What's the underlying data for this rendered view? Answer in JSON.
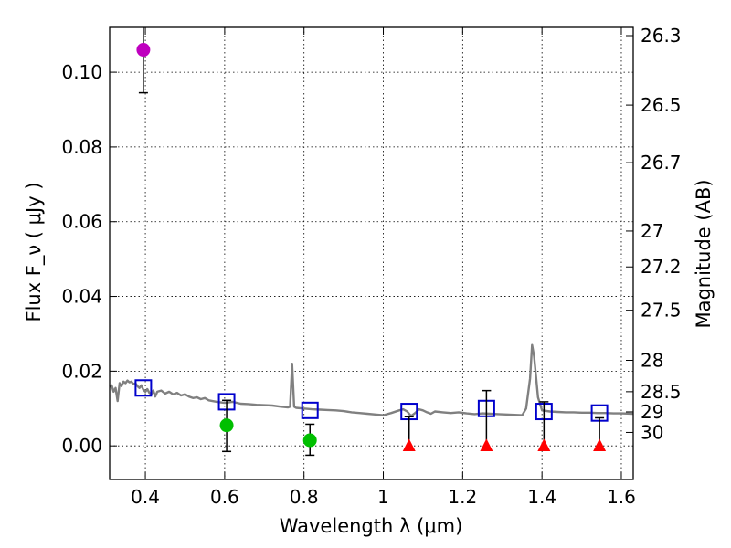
{
  "chart_data": {
    "type": "scatter",
    "xlabel": "Wavelength  λ (μm)",
    "ylabel": "Flux  F_ν  ( μJy )",
    "ylabel_right": "Magnitude (AB)",
    "xlim": [
      0.31,
      1.63
    ],
    "ylim": [
      -0.009,
      0.112
    ],
    "grid": true,
    "xticks": [
      0.4,
      0.6,
      0.8,
      1.0,
      1.2,
      1.4,
      1.6
    ],
    "xtick_labels": [
      "0.4",
      "0.6",
      "0.8",
      "1",
      "1.2",
      "1.4",
      "1.6"
    ],
    "yticks": [
      0.0,
      0.02,
      0.04,
      0.06,
      0.08,
      0.1
    ],
    "ytick_labels": [
      "0.00",
      "0.02",
      "0.04",
      "0.06",
      "0.08",
      "0.10"
    ],
    "right_ticks": [
      {
        "label": "26.3",
        "flux": 0.1098
      },
      {
        "label": "26.5",
        "flux": 0.0912
      },
      {
        "label": "26.7",
        "flux": 0.0758
      },
      {
        "label": "27",
        "flux": 0.0575
      },
      {
        "label": "27.2",
        "flux": 0.0479
      },
      {
        "label": "27.5",
        "flux": 0.0363
      },
      {
        "label": "28",
        "flux": 0.0229
      },
      {
        "label": "28.5",
        "flux": 0.0145
      },
      {
        "label": "29",
        "flux": 0.0091
      },
      {
        "label": "30",
        "flux": 0.0036
      }
    ],
    "series": [
      {
        "name": "model-spectrum",
        "kind": "line",
        "color": "#808080",
        "points": [
          [
            0.31,
            0.0158
          ],
          [
            0.315,
            0.0162
          ],
          [
            0.32,
            0.0145
          ],
          [
            0.325,
            0.0155
          ],
          [
            0.33,
            0.012
          ],
          [
            0.335,
            0.0168
          ],
          [
            0.34,
            0.016
          ],
          [
            0.345,
            0.0172
          ],
          [
            0.35,
            0.0168
          ],
          [
            0.355,
            0.0175
          ],
          [
            0.36,
            0.017
          ],
          [
            0.365,
            0.0172
          ],
          [
            0.37,
            0.0165
          ],
          [
            0.375,
            0.0168
          ],
          [
            0.38,
            0.016
          ],
          [
            0.385,
            0.0155
          ],
          [
            0.39,
            0.0162
          ],
          [
            0.395,
            0.015
          ],
          [
            0.4,
            0.0145
          ],
          [
            0.405,
            0.0152
          ],
          [
            0.41,
            0.0142
          ],
          [
            0.415,
            0.0138
          ],
          [
            0.42,
            0.0148
          ],
          [
            0.425,
            0.0132
          ],
          [
            0.43,
            0.0145
          ],
          [
            0.44,
            0.0148
          ],
          [
            0.45,
            0.014
          ],
          [
            0.46,
            0.0145
          ],
          [
            0.47,
            0.0138
          ],
          [
            0.48,
            0.0142
          ],
          [
            0.49,
            0.0135
          ],
          [
            0.5,
            0.0138
          ],
          [
            0.51,
            0.0132
          ],
          [
            0.52,
            0.0128
          ],
          [
            0.53,
            0.013
          ],
          [
            0.54,
            0.0125
          ],
          [
            0.55,
            0.0128
          ],
          [
            0.56,
            0.0122
          ],
          [
            0.58,
            0.0118
          ],
          [
            0.6,
            0.0115
          ],
          [
            0.62,
            0.0118
          ],
          [
            0.64,
            0.0113
          ],
          [
            0.66,
            0.0112
          ],
          [
            0.68,
            0.011
          ],
          [
            0.7,
            0.0109
          ],
          [
            0.72,
            0.0108
          ],
          [
            0.74,
            0.0105
          ],
          [
            0.76,
            0.0103
          ],
          [
            0.765,
            0.0105
          ],
          [
            0.77,
            0.022
          ],
          [
            0.775,
            0.0105
          ],
          [
            0.78,
            0.0102
          ],
          [
            0.8,
            0.01
          ],
          [
            0.82,
            0.0098
          ],
          [
            0.84,
            0.0097
          ],
          [
            0.86,
            0.0096
          ],
          [
            0.88,
            0.0095
          ],
          [
            0.9,
            0.0093
          ],
          [
            0.92,
            0.009
          ],
          [
            0.94,
            0.0088
          ],
          [
            0.96,
            0.0086
          ],
          [
            0.98,
            0.0084
          ],
          [
            1.0,
            0.0082
          ],
          [
            1.02,
            0.0088
          ],
          [
            1.04,
            0.0095
          ],
          [
            1.05,
            0.0098
          ],
          [
            1.06,
            0.0092
          ],
          [
            1.07,
            0.008
          ],
          [
            1.08,
            0.0088
          ],
          [
            1.09,
            0.0098
          ],
          [
            1.1,
            0.0095
          ],
          [
            1.11,
            0.009
          ],
          [
            1.12,
            0.0086
          ],
          [
            1.13,
            0.0092
          ],
          [
            1.15,
            0.009
          ],
          [
            1.17,
            0.0088
          ],
          [
            1.19,
            0.009
          ],
          [
            1.21,
            0.0087
          ],
          [
            1.23,
            0.0085
          ],
          [
            1.25,
            0.0087
          ],
          [
            1.27,
            0.0086
          ],
          [
            1.29,
            0.0085
          ],
          [
            1.31,
            0.0084
          ],
          [
            1.33,
            0.0083
          ],
          [
            1.35,
            0.0082
          ],
          [
            1.36,
            0.01
          ],
          [
            1.37,
            0.018
          ],
          [
            1.375,
            0.027
          ],
          [
            1.38,
            0.024
          ],
          [
            1.39,
            0.013
          ],
          [
            1.4,
            0.0095
          ],
          [
            1.42,
            0.0092
          ],
          [
            1.44,
            0.0091
          ],
          [
            1.46,
            0.009
          ],
          [
            1.48,
            0.009
          ],
          [
            1.5,
            0.0089
          ],
          [
            1.52,
            0.0089
          ],
          [
            1.54,
            0.0088
          ],
          [
            1.56,
            0.0088
          ],
          [
            1.58,
            0.0087
          ],
          [
            1.6,
            0.0087
          ],
          [
            1.63,
            0.0086
          ]
        ]
      },
      {
        "name": "model-photometry",
        "kind": "open-square",
        "color": "#0000cc",
        "x": [
          0.395,
          0.605,
          0.815,
          1.065,
          1.26,
          1.405,
          1.545
        ],
        "y": [
          0.0155,
          0.0118,
          0.0095,
          0.0092,
          0.01,
          0.0092,
          0.0088
        ]
      },
      {
        "name": "detection-violet",
        "kind": "circle",
        "color": "#bf00bf",
        "x": [
          0.395
        ],
        "y": [
          0.106
        ],
        "err_low": [
          0.0945
        ],
        "err_high": [
          0.112
        ]
      },
      {
        "name": "detections-green",
        "kind": "circle",
        "color": "#00bf00",
        "x": [
          0.605,
          0.815
        ],
        "y": [
          0.0055,
          0.0015
        ],
        "err_low": [
          -0.0015,
          -0.0025
        ],
        "err_high": [
          0.0122,
          0.0058
        ]
      },
      {
        "name": "upper-limits",
        "kind": "triangle",
        "color": "#ff0000",
        "x": [
          1.065,
          1.26,
          1.405,
          1.545
        ],
        "y": [
          0.0,
          0.0,
          0.0,
          0.0
        ],
        "err_high": [
          0.0078,
          0.0148,
          0.0118,
          0.0075
        ]
      }
    ]
  }
}
